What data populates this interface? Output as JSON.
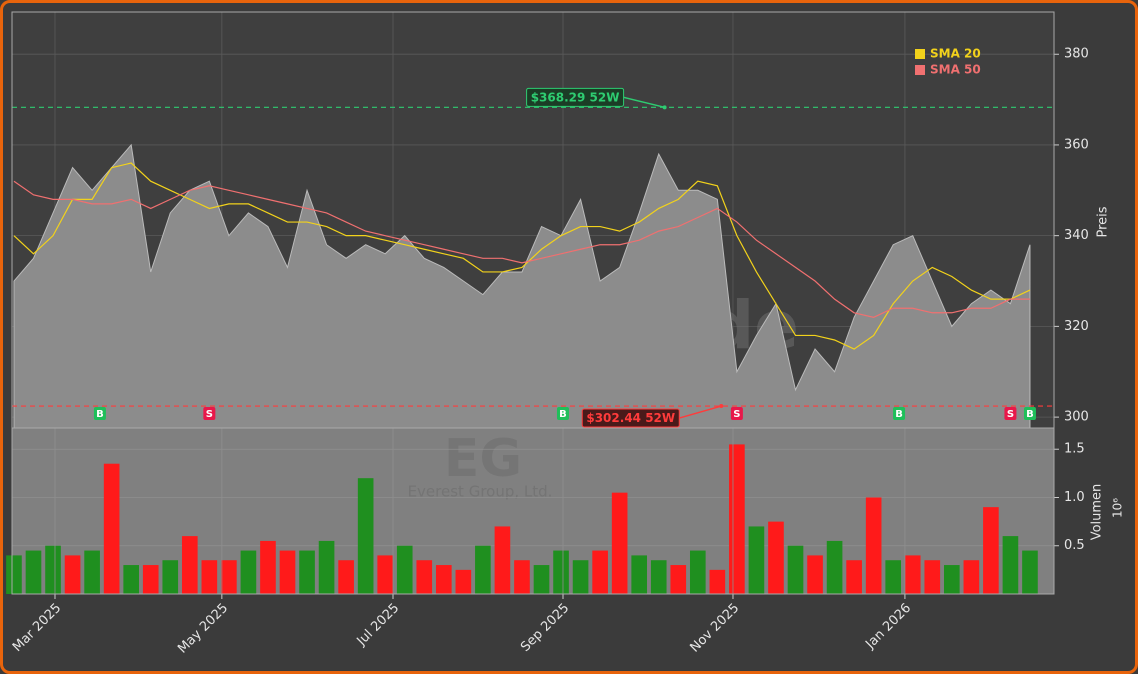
{
  "chart_data": [
    {
      "type": "area",
      "watermark": "forexsignale.trade",
      "symbol": "EG",
      "company": "Everest Group, Ltd.",
      "ylabel": "Preis",
      "xlim": [
        -0.1,
        53.23
      ],
      "ylim": [
        297.6,
        389.3
      ],
      "yticks": [
        300,
        320,
        340,
        360,
        380
      ],
      "grid": true,
      "close": {
        "color": "#8c8c8c",
        "values": [
          330,
          335,
          345,
          355,
          350,
          355,
          360,
          332,
          345,
          350,
          352,
          340,
          345,
          342,
          333,
          350,
          338,
          335,
          338,
          336,
          340,
          335,
          333,
          330,
          327,
          332,
          332,
          342,
          340,
          348,
          330,
          333,
          345,
          358,
          350,
          350,
          348,
          310,
          318,
          325,
          306,
          315,
          310,
          322,
          330,
          338,
          340,
          330,
          320,
          325,
          328,
          325,
          338
        ]
      },
      "series": [
        {
          "name": "SMA 20",
          "color": "#f2d21b",
          "values": [
            340,
            336,
            340,
            348,
            348,
            355,
            356,
            352,
            350,
            348,
            346,
            347,
            347,
            345,
            343,
            343,
            342,
            340,
            340,
            339,
            338,
            337,
            336,
            335,
            332,
            332,
            333,
            337,
            340,
            342,
            342,
            341,
            343,
            346,
            348,
            352,
            351,
            340,
            332,
            325,
            318,
            318,
            317,
            315,
            318,
            325,
            330,
            333,
            331,
            328,
            326,
            326,
            328
          ]
        },
        {
          "name": "SMA 50",
          "color": "#f07070",
          "values": [
            352,
            349,
            348,
            348,
            347,
            347,
            348,
            346,
            348,
            350,
            351,
            350,
            349,
            348,
            347,
            346,
            345,
            343,
            341,
            340,
            339,
            338,
            337,
            336,
            335,
            335,
            334,
            335,
            336,
            337,
            338,
            338,
            339,
            341,
            342,
            344,
            346,
            343,
            339,
            336,
            333,
            330,
            326,
            323,
            322,
            324,
            324,
            323,
            323,
            324,
            324,
            326,
            326
          ]
        }
      ],
      "legend": "upper right",
      "annotations": [
        {
          "text": "$368.29 52W",
          "value": 368.29,
          "x": 33.3,
          "color": "#2ecc71"
        },
        {
          "text": "$302.44 52W",
          "value": 302.44,
          "x": 36.2,
          "color": "#ff3b3b"
        }
      ],
      "signals": [
        {
          "label": "B",
          "x": 4.4
        },
        {
          "label": "S",
          "x": 10
        },
        {
          "label": "B",
          "x": 28.1
        },
        {
          "label": "S",
          "x": 37
        },
        {
          "label": "B",
          "x": 45.3
        },
        {
          "label": "S",
          "x": 51
        },
        {
          "label": "B",
          "x": 52
        }
      ]
    },
    {
      "type": "bar",
      "ylabel": "Volumen",
      "multiplier": "10⁶",
      "xlim": [
        -0.1,
        53.23
      ],
      "ylim": [
        0,
        1.72
      ],
      "yticks": [
        0.5,
        {
          "value": 1.0,
          "label": "1.0"
        },
        1.5
      ],
      "xticks": [
        {
          "value": 2.1,
          "label": "Mar 2025"
        },
        {
          "value": 10.64,
          "label": "May 2025"
        },
        {
          "value": 19.4,
          "label": "Jul 2025"
        },
        {
          "value": 28.1,
          "label": "Sep 2025"
        },
        {
          "value": 36.8,
          "label": "Nov 2025"
        },
        {
          "value": 45.6,
          "label": "Jan 2026"
        }
      ],
      "values": [
        0.4,
        0.45,
        0.5,
        0.4,
        0.45,
        1.35,
        0.3,
        0.3,
        0.35,
        0.6,
        0.35,
        0.35,
        0.45,
        0.55,
        0.45,
        0.45,
        0.55,
        0.35,
        1.2,
        0.4,
        0.5,
        0.35,
        0.3,
        0.25,
        0.5,
        0.7,
        0.35,
        0.3,
        0.45,
        0.35,
        0.45,
        1.05,
        0.4,
        0.35,
        0.3,
        0.45,
        0.25,
        1.55,
        0.7,
        0.75,
        0.5,
        0.4,
        0.55,
        0.35,
        1.0,
        0.35,
        0.4,
        0.35,
        0.3,
        0.35,
        0.9,
        0.6,
        0.45
      ],
      "colors": [
        "#1f8f1f",
        "#1f8f1f",
        "#1f8f1f",
        "#ff1a1a",
        "#1f8f1f",
        "#ff1a1a",
        "#1f8f1f",
        "#ff1a1a",
        "#1f8f1f",
        "#ff1a1a",
        "#ff1a1a",
        "#ff1a1a",
        "#1f8f1f",
        "#ff1a1a",
        "#ff1a1a",
        "#1f8f1f",
        "#1f8f1f",
        "#ff1a1a",
        "#1f8f1f",
        "#ff1a1a",
        "#1f8f1f",
        "#ff1a1a",
        "#ff1a1a",
        "#ff1a1a",
        "#1f8f1f",
        "#ff1a1a",
        "#ff1a1a",
        "#1f8f1f",
        "#1f8f1f",
        "#1f8f1f",
        "#ff1a1a",
        "#ff1a1a",
        "#1f8f1f",
        "#1f8f1f",
        "#ff1a1a",
        "#1f8f1f",
        "#ff1a1a",
        "#ff1a1a",
        "#1f8f1f",
        "#ff1a1a",
        "#1f8f1f",
        "#ff1a1a",
        "#1f8f1f",
        "#ff1a1a",
        "#ff1a1a",
        "#1f8f1f",
        "#ff1a1a",
        "#ff1a1a",
        "#1f8f1f",
        "#ff1a1a",
        "#ff1a1a",
        "#1f8f1f",
        "#1f8f1f"
      ]
    }
  ]
}
